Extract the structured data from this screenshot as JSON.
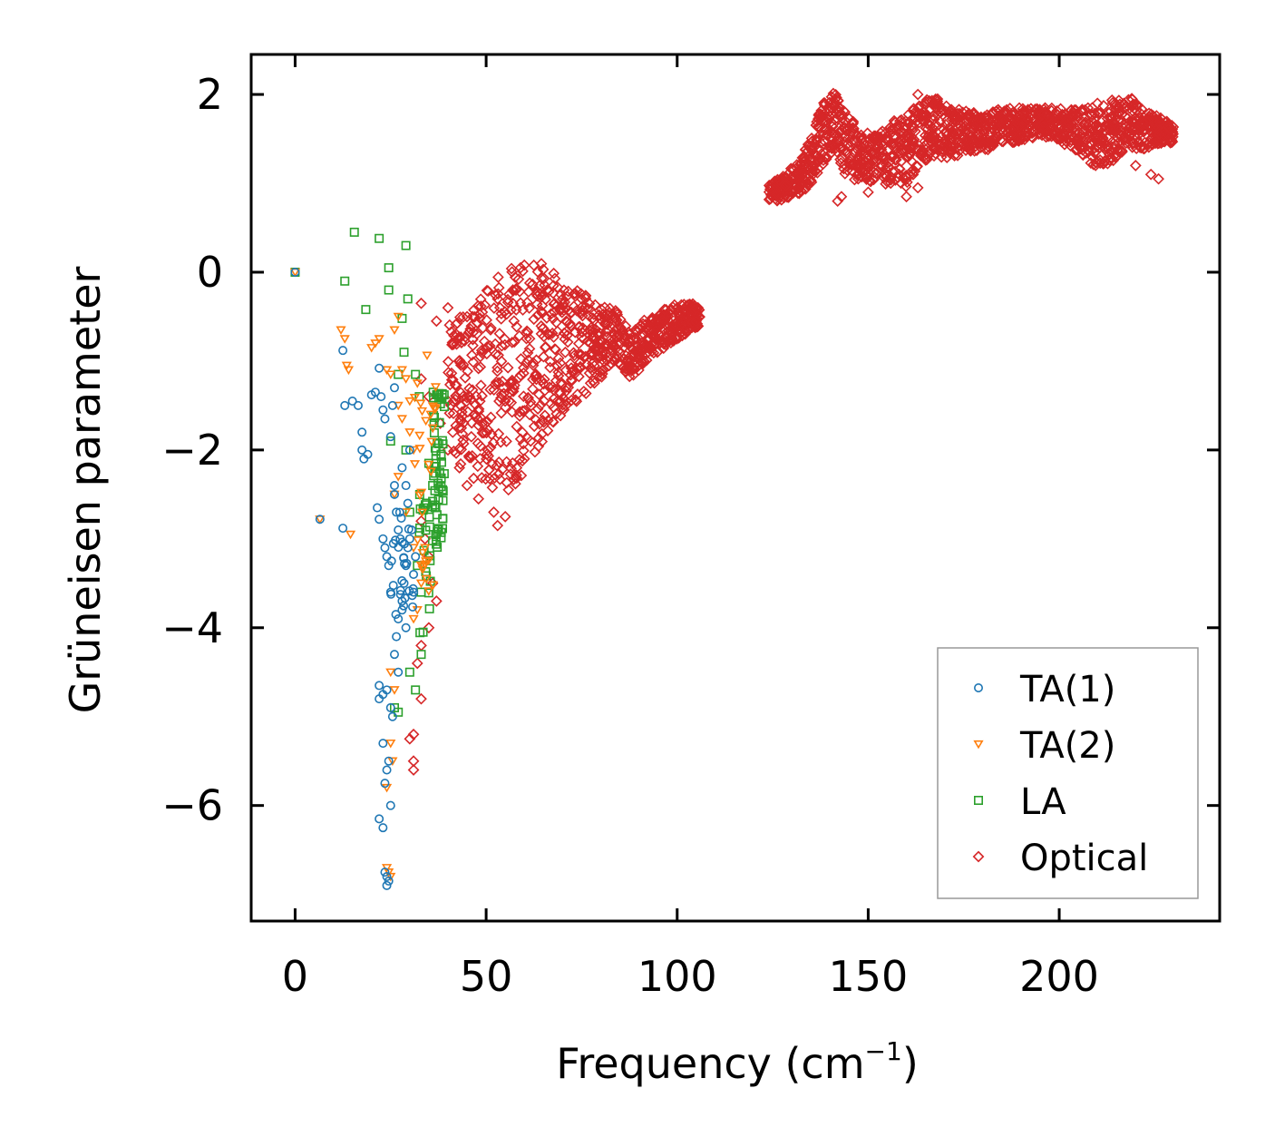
{
  "chart_data": {
    "type": "scatter",
    "title": "",
    "xlabel": "Frequency (cm",
    "xlabel_sup": "−1",
    "xlabel_close": ")",
    "ylabel": "Grüneisen parameter",
    "xlim": [
      -11.5,
      242
    ],
    "ylim": [
      -7.3,
      2.45
    ],
    "xticks": [
      0,
      50,
      100,
      150,
      200
    ],
    "xtick_labels": [
      "0",
      "50",
      "100",
      "150",
      "200"
    ],
    "yticks": [
      2,
      0,
      -2,
      -4,
      -6
    ],
    "ytick_labels": [
      "2",
      "0",
      "−2",
      "−4",
      "−6"
    ],
    "grid": false,
    "legend_position": "lower-right",
    "series": [
      {
        "name": "TA(1)",
        "marker": "circle",
        "color": "#1f77b4",
        "points": [
          [
            0,
            0
          ],
          [
            6.5,
            -2.78
          ],
          [
            12.5,
            -2.88
          ],
          [
            12.5,
            -0.88
          ],
          [
            13,
            -1.5
          ],
          [
            15,
            -1.45
          ],
          [
            16.5,
            -1.5
          ],
          [
            17.5,
            -1.8
          ],
          [
            17.5,
            -2.0
          ],
          [
            18,
            -2.1
          ],
          [
            19,
            -2.05
          ],
          [
            20,
            -1.38
          ],
          [
            21,
            -1.35
          ],
          [
            21.5,
            -2.65
          ],
          [
            22,
            -2.78
          ],
          [
            22,
            -1.08
          ],
          [
            22.5,
            -1.4
          ],
          [
            23,
            -1.55
          ],
          [
            23.5,
            -1.65
          ],
          [
            23,
            -3.0
          ],
          [
            23.5,
            -3.1
          ],
          [
            24,
            -3.2
          ],
          [
            24.5,
            -3.3
          ],
          [
            25,
            -1.85
          ],
          [
            25,
            -3.6
          ],
          [
            25.5,
            -1.5
          ],
          [
            26,
            -1.3
          ],
          [
            26,
            -2.4
          ],
          [
            26,
            -2.5
          ],
          [
            26.5,
            -2.7
          ],
          [
            27,
            -2.9
          ],
          [
            27.5,
            -3.0
          ],
          [
            27,
            -3.9
          ],
          [
            28,
            -3.8
          ],
          [
            28.5,
            -3.5
          ],
          [
            29,
            -3.3
          ],
          [
            29.5,
            -3.1
          ],
          [
            30,
            -3.0
          ],
          [
            30.5,
            -2.9
          ],
          [
            31,
            -3.4
          ],
          [
            31.5,
            -3.2
          ],
          [
            22,
            -4.65
          ],
          [
            22,
            -4.8
          ],
          [
            23,
            -4.75
          ],
          [
            24,
            -4.7
          ],
          [
            25,
            -4.9
          ],
          [
            25.5,
            -5.0
          ],
          [
            26,
            -4.3
          ],
          [
            26.5,
            -4.1
          ],
          [
            27,
            -4.5
          ],
          [
            23,
            -5.3
          ],
          [
            24,
            -5.6
          ],
          [
            24.5,
            -5.5
          ],
          [
            23.5,
            -5.75
          ],
          [
            25,
            -6.0
          ],
          [
            22,
            -6.15
          ],
          [
            23,
            -6.25
          ],
          [
            23.5,
            -6.75
          ],
          [
            24,
            -6.8
          ],
          [
            24.5,
            -6.85
          ],
          [
            24,
            -6.9
          ],
          [
            28,
            -2.2
          ],
          [
            29,
            -2.4
          ],
          [
            29.5,
            -2.6
          ],
          [
            30,
            -2.0
          ],
          [
            31,
            -3.6
          ],
          [
            28,
            -3.7
          ],
          [
            29,
            -4.0
          ]
        ],
        "clusters": [
          [
            28,
            -3.3,
            3,
            0.6,
            25
          ]
        ]
      },
      {
        "name": "TA(2)",
        "marker": "triangle",
        "color": "#ff7f0e",
        "points": [
          [
            0,
            0
          ],
          [
            6.5,
            -2.78
          ],
          [
            12,
            -0.65
          ],
          [
            13,
            -0.75
          ],
          [
            13.5,
            -1.05
          ],
          [
            14,
            -1.1
          ],
          [
            14.5,
            -2.95
          ],
          [
            20,
            -0.85
          ],
          [
            21,
            -0.8
          ],
          [
            22,
            -0.75
          ],
          [
            24,
            -1.1
          ],
          [
            25,
            -1.15
          ],
          [
            26,
            -0.65
          ],
          [
            27,
            -0.5
          ],
          [
            28,
            -1.1
          ],
          [
            29,
            -1.2
          ],
          [
            27,
            -1.5
          ],
          [
            28,
            -1.65
          ],
          [
            30,
            -1.8
          ],
          [
            31,
            -2.0
          ],
          [
            26,
            -2.5
          ],
          [
            27,
            -2.3
          ],
          [
            29,
            -2.7
          ],
          [
            31,
            -3.1
          ],
          [
            33,
            -3.3
          ],
          [
            33,
            -3.5
          ],
          [
            34,
            -3.1
          ],
          [
            31,
            -3.9
          ],
          [
            32,
            -3.8
          ],
          [
            25,
            -4.5
          ],
          [
            26,
            -4.7
          ],
          [
            25,
            -5.3
          ],
          [
            25.5,
            -5.5
          ],
          [
            24,
            -5.8
          ],
          [
            24,
            -6.7
          ],
          [
            24.5,
            -6.75
          ],
          [
            25,
            -6.8
          ],
          [
            30,
            -1.45
          ],
          [
            32,
            -1.25
          ]
        ],
        "clusters": [
          [
            34,
            -2.2,
            3,
            1.4,
            30
          ]
        ]
      },
      {
        "name": "LA",
        "marker": "square",
        "color": "#2ca02c",
        "points": [
          [
            0,
            0
          ],
          [
            15.5,
            0.45
          ],
          [
            22,
            0.38
          ],
          [
            29,
            0.3
          ],
          [
            24.5,
            0.05
          ],
          [
            13,
            -0.1
          ],
          [
            24.5,
            -0.2
          ],
          [
            29.5,
            -0.3
          ],
          [
            18.5,
            -0.42
          ],
          [
            28,
            -0.52
          ],
          [
            28.5,
            -0.9
          ],
          [
            27,
            -1.15
          ],
          [
            31.5,
            -1.15
          ],
          [
            32.5,
            -1.4
          ],
          [
            25,
            -1.9
          ],
          [
            29,
            -2.0
          ],
          [
            35,
            -2.15
          ],
          [
            36,
            -2.4
          ],
          [
            30,
            -2.7
          ],
          [
            32,
            -3.3
          ],
          [
            33,
            -3.6
          ],
          [
            33.5,
            -4.05
          ],
          [
            33,
            -4.3
          ],
          [
            31.5,
            -4.7
          ],
          [
            27,
            -4.95
          ],
          [
            26,
            -4.9
          ],
          [
            30,
            -4.5
          ]
        ],
        "clusters": [
          [
            37.5,
            -2.2,
            1.6,
            0.9,
            60
          ],
          [
            34,
            -3.3,
            1.5,
            0.8,
            20
          ]
        ]
      },
      {
        "name": "Optical",
        "marker": "diamond",
        "color": "#d62728",
        "points": [
          [
            59,
            0.05
          ],
          [
            60,
            0.08
          ],
          [
            57,
            -0.2
          ],
          [
            53,
            -0.3
          ],
          [
            56,
            -0.25
          ],
          [
            64,
            -0.15
          ],
          [
            65,
            -0.25
          ],
          [
            66,
            -0.2
          ],
          [
            70,
            -0.3
          ],
          [
            75,
            -0.3
          ],
          [
            33,
            -0.35
          ],
          [
            37,
            -0.55
          ],
          [
            40,
            -0.4
          ],
          [
            45,
            -0.5
          ],
          [
            49,
            -0.45
          ],
          [
            33,
            -1.2
          ],
          [
            35,
            -1.4
          ],
          [
            38,
            -1.7
          ],
          [
            40,
            -2.0
          ],
          [
            43,
            -2.2
          ],
          [
            45,
            -2.4
          ],
          [
            48,
            -2.55
          ],
          [
            52,
            -2.7
          ],
          [
            53,
            -2.85
          ],
          [
            55,
            -2.75
          ],
          [
            58,
            -2.2
          ],
          [
            60,
            -2.1
          ],
          [
            33,
            -2.8
          ],
          [
            35,
            -3.2
          ],
          [
            36,
            -3.5
          ],
          [
            37,
            -3.7
          ],
          [
            35,
            -4.0
          ],
          [
            33,
            -4.2
          ],
          [
            33,
            -4.8
          ],
          [
            30,
            -5.25
          ],
          [
            31,
            -5.2
          ],
          [
            31,
            -5.5
          ],
          [
            31,
            -5.6
          ],
          [
            32,
            -4.4
          ],
          [
            34,
            -3.0
          ],
          [
            142,
            0.8
          ],
          [
            143,
            0.85
          ],
          [
            150,
            0.9
          ],
          [
            160,
            0.85
          ],
          [
            163,
            0.95
          ],
          [
            163,
            2.0
          ],
          [
            210,
            1.9
          ],
          [
            224,
            1.1
          ],
          [
            226,
            1.05
          ],
          [
            220,
            1.2
          ],
          [
            215,
            1.3
          ],
          [
            212,
            1.25
          ]
        ],
        "bands": [
          [
            [
              40,
              -1.2,
              0.7
            ],
            [
              45,
              -1.4,
              0.9
            ],
            [
              50,
              -1.3,
              1.1
            ],
            [
              55,
              -1.2,
              1.3
            ],
            [
              60,
              -1.1,
              1.2
            ],
            [
              65,
              -0.9,
              1.0
            ],
            [
              70,
              -0.8,
              0.8
            ],
            [
              75,
              -0.8,
              0.6
            ],
            [
              80,
              -0.8,
              0.45
            ],
            [
              84,
              -0.7,
              0.3
            ],
            [
              88,
              -0.95,
              0.25
            ],
            [
              92,
              -0.75,
              0.25
            ],
            [
              96,
              -0.65,
              0.22
            ],
            [
              100,
              -0.55,
              0.2
            ],
            [
              104,
              -0.5,
              0.15
            ],
            [
              106,
              -0.5,
              0.1
            ]
          ],
          [
            [
              124,
              0.9,
              0.1
            ],
            [
              128,
              0.95,
              0.15
            ],
            [
              132,
              1.05,
              0.2
            ],
            [
              135,
              1.25,
              0.25
            ],
            [
              138,
              1.55,
              0.35
            ],
            [
              141,
              1.7,
              0.35
            ],
            [
              144,
              1.45,
              0.35
            ],
            [
              148,
              1.3,
              0.3
            ],
            [
              152,
              1.25,
              0.3
            ],
            [
              156,
              1.35,
              0.35
            ],
            [
              160,
              1.35,
              0.4
            ],
            [
              163,
              1.55,
              0.35
            ],
            [
              167,
              1.65,
              0.35
            ],
            [
              171,
              1.55,
              0.3
            ],
            [
              175,
              1.6,
              0.25
            ],
            [
              180,
              1.55,
              0.2
            ],
            [
              185,
              1.65,
              0.2
            ],
            [
              190,
              1.65,
              0.2
            ],
            [
              195,
              1.7,
              0.15
            ],
            [
              200,
              1.65,
              0.2
            ],
            [
              205,
              1.6,
              0.25
            ],
            [
              210,
              1.5,
              0.35
            ],
            [
              214,
              1.6,
              0.35
            ],
            [
              218,
              1.7,
              0.3
            ],
            [
              222,
              1.6,
              0.25
            ],
            [
              226,
              1.6,
              0.15
            ],
            [
              230,
              1.55,
              0.1
            ]
          ]
        ]
      }
    ]
  }
}
